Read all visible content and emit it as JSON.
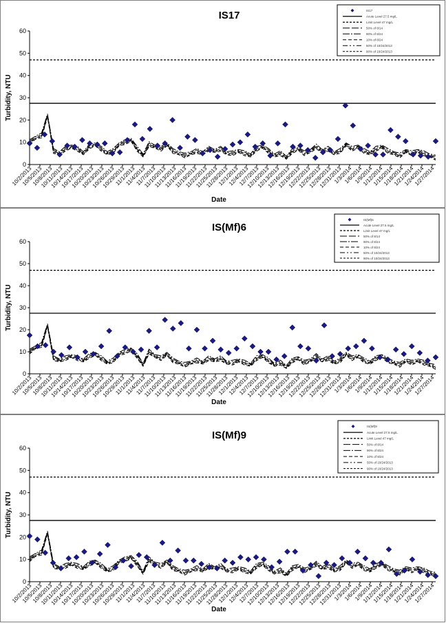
{
  "chart_data": [
    {
      "type": "scatter",
      "title": "IS17",
      "xlabel": "Date",
      "ylabel": "Turbidity, NTU",
      "ylim": [
        0,
        60
      ],
      "yticks": [
        "0",
        "10",
        "20",
        "30",
        "40",
        "50",
        "60"
      ],
      "x_tick_labels": [
        "10/2/2013",
        "10/5/2013",
        "10/8/2013",
        "10/11/2013",
        "10/14/2013",
        "10/17/2013",
        "10/20/2013",
        "10/23/2013",
        "10/26/2013",
        "10/29/2013",
        "11/1/2013",
        "11/4/2013",
        "11/7/2013",
        "11/10/2013",
        "11/13/2013",
        "11/16/2013",
        "11/19/2013",
        "11/22/2013",
        "11/25/2013",
        "11/28/2013",
        "12/1/2013",
        "12/4/2013",
        "12/7/2013",
        "12/10/2013",
        "12/13/2013",
        "12/16/2013",
        "12/19/2013",
        "12/22/2013",
        "12/25/2013",
        "12/28/2013",
        "12/31/2013",
        "1/3/2014",
        "1/6/2014",
        "1/9/2014",
        "1/12/2014",
        "1/15/2014",
        "1/18/2014",
        "1/21/2014",
        "1/24/2014",
        "1/27/2014"
      ],
      "thresholds": [
        47.0,
        27.5
      ],
      "legend": {
        "position": "top-right",
        "entries": [
          "IS17",
          "Acute Level 27.5 mg/L",
          "Limit Level 47 mg/L",
          "50% of 8/14",
          "90% of 8/24",
          "10% of 8/24",
          "50% of 10/24/2013",
          "90% of 10/24/2013"
        ]
      },
      "observed": [
        [
          0,
          9.5
        ],
        [
          1,
          7.5
        ],
        [
          2,
          13.5
        ],
        [
          3,
          10.5
        ],
        [
          4,
          4.5
        ],
        [
          5,
          8.5
        ],
        [
          6,
          8
        ],
        [
          7,
          11
        ],
        [
          8,
          9.5
        ],
        [
          9,
          9
        ],
        [
          10,
          9.5
        ],
        [
          11,
          5
        ],
        [
          12,
          5.5
        ],
        [
          13,
          11
        ],
        [
          14,
          18
        ],
        [
          15,
          11.5
        ],
        [
          16,
          16
        ],
        [
          17,
          8.5
        ],
        [
          18,
          9.5
        ],
        [
          19,
          20
        ],
        [
          20,
          7.5
        ],
        [
          21,
          12.5
        ],
        [
          22,
          11
        ],
        [
          23,
          5
        ],
        [
          24,
          6.5
        ],
        [
          25,
          3.5
        ],
        [
          26,
          7
        ],
        [
          27,
          9
        ],
        [
          28,
          10
        ],
        [
          29,
          13.5
        ],
        [
          30,
          8
        ],
        [
          31,
          9.5
        ],
        [
          32,
          4
        ],
        [
          33,
          9.5
        ],
        [
          34,
          18
        ],
        [
          35,
          8
        ],
        [
          36,
          8.5
        ],
        [
          37,
          6.5
        ],
        [
          38,
          3
        ],
        [
          39,
          5.5
        ],
        [
          40,
          6.5
        ],
        [
          41,
          11.5
        ],
        [
          42,
          26.5
        ],
        [
          43,
          17.5
        ],
        [
          44,
          7
        ],
        [
          45,
          8.5
        ],
        [
          46,
          4.5
        ],
        [
          47,
          4.5
        ],
        [
          48,
          15.5
        ],
        [
          49,
          12.5
        ],
        [
          50,
          10.5
        ],
        [
          51,
          4.5
        ],
        [
          52,
          4
        ],
        [
          53,
          3.5
        ],
        [
          54,
          10.5
        ]
      ],
      "model_base": [
        10,
        12,
        13,
        22,
        6,
        5,
        7,
        8,
        7,
        5,
        8,
        9,
        7,
        5,
        6,
        9,
        10,
        11,
        7,
        4,
        9,
        8,
        7,
        9,
        6,
        5,
        4,
        5,
        6,
        5,
        7,
        6,
        7,
        5,
        5,
        6,
        5,
        4,
        7,
        8,
        6,
        4,
        5,
        3,
        6,
        7,
        5,
        6,
        8,
        6,
        7,
        5,
        6,
        9,
        7,
        8,
        6,
        5,
        7,
        8,
        6,
        5,
        4,
        6,
        5,
        6,
        5,
        4,
        3
      ]
    },
    {
      "type": "scatter",
      "title": "IS(Mf)6",
      "xlabel": "Date",
      "ylabel": "Turbidity, NTU",
      "ylim": [
        0,
        60
      ],
      "yticks": [
        "0",
        "10",
        "20",
        "30",
        "40",
        "50",
        "60"
      ],
      "x_tick_labels": [
        "10/2/2013",
        "10/5/2013",
        "10/8/2013",
        "10/11/2013",
        "10/14/2013",
        "10/17/2013",
        "10/20/2013",
        "10/23/2013",
        "10/26/2013",
        "10/29/2013",
        "11/1/2013",
        "11/4/2013",
        "11/7/2013",
        "11/10/2013",
        "11/13/2013",
        "11/16/2013",
        "11/19/2013",
        "11/22/2013",
        "11/25/2013",
        "11/28/2013",
        "12/1/2013",
        "12/4/2013",
        "12/7/2013",
        "12/10/2013",
        "12/13/2013",
        "12/16/2013",
        "12/19/2013",
        "12/22/2013",
        "12/25/2013",
        "12/28/2013",
        "12/31/2013",
        "1/3/2014",
        "1/6/2014",
        "1/9/2014",
        "1/12/2014",
        "1/15/2014",
        "1/18/2014",
        "1/21/2014",
        "1/24/2014",
        "1/27/2014"
      ],
      "thresholds": [
        47.0,
        27.5
      ],
      "legend": {
        "position": "top-right",
        "entries": [
          "IS(Mf)6",
          "Acute Level 27.5 mg/L",
          "Limit Level 47 mg/L",
          "50% of 8/14",
          "90% of 8/24",
          "10% of 8/24",
          "50% of 10/24/2013",
          "90% of 10/24/2013"
        ]
      },
      "observed": [
        [
          0,
          17.5
        ],
        [
          1,
          12.5
        ],
        [
          2,
          13
        ],
        [
          3,
          10
        ],
        [
          4,
          8.5
        ],
        [
          5,
          12
        ],
        [
          6,
          7.5
        ],
        [
          7,
          10
        ],
        [
          8,
          9
        ],
        [
          9,
          12.5
        ],
        [
          10,
          19.5
        ],
        [
          11,
          8
        ],
        [
          12,
          12
        ],
        [
          13,
          10
        ],
        [
          14,
          11
        ],
        [
          15,
          19.5
        ],
        [
          16,
          12
        ],
        [
          17,
          24.5
        ],
        [
          18,
          20.5
        ],
        [
          19,
          23
        ],
        [
          20,
          11.5
        ],
        [
          21,
          20
        ],
        [
          22,
          11.5
        ],
        [
          23,
          15
        ],
        [
          24,
          11
        ],
        [
          25,
          9.5
        ],
        [
          26,
          11.5
        ],
        [
          27,
          16
        ],
        [
          28,
          12.5
        ],
        [
          29,
          10
        ],
        [
          30,
          10
        ],
        [
          31,
          6.5
        ],
        [
          32,
          8
        ],
        [
          33,
          21
        ],
        [
          34,
          12.5
        ],
        [
          35,
          11.5
        ],
        [
          36,
          6
        ],
        [
          37,
          22
        ],
        [
          38,
          8
        ],
        [
          39,
          9
        ],
        [
          40,
          11.5
        ],
        [
          41,
          12.5
        ],
        [
          42,
          15
        ],
        [
          43,
          11.5
        ],
        [
          44,
          7.5
        ],
        [
          45,
          6.5
        ],
        [
          46,
          11
        ],
        [
          47,
          9
        ],
        [
          48,
          12.5
        ],
        [
          49,
          9.5
        ],
        [
          50,
          6
        ],
        [
          51,
          7.5
        ]
      ],
      "model_base": [
        10,
        12,
        13,
        22,
        7,
        6,
        7,
        8,
        7,
        6,
        8,
        9,
        7,
        5,
        6,
        9,
        10,
        11,
        8,
        4,
        10,
        8,
        7,
        9,
        6,
        5,
        4,
        5,
        6,
        5,
        7,
        6,
        7,
        5,
        5,
        6,
        5,
        4,
        7,
        8,
        6,
        4,
        5,
        3,
        6,
        7,
        5,
        6,
        8,
        6,
        7,
        5,
        6,
        9,
        7,
        8,
        6,
        5,
        7,
        8,
        6,
        5,
        4,
        6,
        5,
        6,
        5,
        4,
        3
      ]
    },
    {
      "type": "scatter",
      "title": "IS(Mf)9",
      "xlabel": "Date",
      "ylabel": "Turbidity, NTU",
      "ylim": [
        0,
        60
      ],
      "yticks": [
        "0",
        "10",
        "20",
        "30",
        "40",
        "50",
        "60"
      ],
      "x_tick_labels": [
        "10/2/2013",
        "10/5/2013",
        "10/8/2013",
        "10/11/2013",
        "10/14/2013",
        "10/17/2013",
        "10/20/2013",
        "10/23/2013",
        "10/26/2013",
        "10/29/2013",
        "11/1/2013",
        "11/4/2013",
        "11/7/2013",
        "11/10/2013",
        "11/13/2013",
        "11/16/2013",
        "11/19/2013",
        "11/22/2013",
        "11/25/2013",
        "11/28/2013",
        "12/1/2013",
        "12/4/2013",
        "12/7/2013",
        "12/10/2013",
        "12/13/2013",
        "12/16/2013",
        "12/19/2013",
        "12/22/2013",
        "12/25/2013",
        "12/28/2013",
        "12/31/2013",
        "1/3/2014",
        "1/6/2014",
        "1/9/2014",
        "1/12/2014",
        "1/15/2014",
        "1/18/2014",
        "1/21/2014",
        "1/24/2014",
        "1/27/2014"
      ],
      "thresholds": [
        47.0,
        27.5
      ],
      "legend": {
        "position": "top-right",
        "entries": [
          "IS(Mf)9",
          "Acute Level 27.5 mg/L",
          "Limit Level 47 mg/L",
          "50% of 8/14",
          "90% of 8/24",
          "10% of 8/24",
          "50% of 10/24/2013",
          "90% of 10/24/2013"
        ]
      },
      "observed": [
        [
          0,
          20.5
        ],
        [
          1,
          19
        ],
        [
          2,
          13
        ],
        [
          3,
          8.5
        ],
        [
          4,
          6
        ],
        [
          5,
          10.5
        ],
        [
          6,
          11
        ],
        [
          7,
          13.5
        ],
        [
          8,
          8.5
        ],
        [
          9,
          12.5
        ],
        [
          10,
          16.5
        ],
        [
          11,
          6.5
        ],
        [
          12,
          9.5
        ],
        [
          13,
          7
        ],
        [
          14,
          12
        ],
        [
          15,
          11
        ],
        [
          16,
          7.5
        ],
        [
          17,
          17.5
        ],
        [
          18,
          9.5
        ],
        [
          19,
          14
        ],
        [
          20,
          9.5
        ],
        [
          21,
          9.5
        ],
        [
          22,
          8
        ],
        [
          23,
          6.5
        ],
        [
          24,
          6
        ],
        [
          25,
          9.5
        ],
        [
          26,
          8.5
        ],
        [
          27,
          11
        ],
        [
          28,
          10
        ],
        [
          29,
          11
        ],
        [
          30,
          10
        ],
        [
          31,
          6.5
        ],
        [
          32,
          9
        ],
        [
          33,
          13.5
        ],
        [
          34,
          13.5
        ],
        [
          35,
          5
        ],
        [
          36,
          7.5
        ],
        [
          37,
          2.5
        ],
        [
          38,
          8.5
        ],
        [
          39,
          7.5
        ],
        [
          40,
          10.5
        ],
        [
          41,
          8.5
        ],
        [
          42,
          13.5
        ],
        [
          43,
          10.5
        ],
        [
          44,
          8.5
        ],
        [
          45,
          8.5
        ],
        [
          46,
          14.5
        ],
        [
          47,
          3.5
        ],
        [
          48,
          5
        ],
        [
          49,
          10
        ],
        [
          50,
          4.5
        ],
        [
          51,
          3
        ],
        [
          52,
          2.5
        ]
      ],
      "model_base": [
        10,
        12,
        13,
        22,
        7,
        6,
        7,
        8,
        7,
        6,
        8,
        9,
        7,
        5,
        6,
        9,
        10,
        11,
        8,
        4,
        10,
        8,
        7,
        9,
        6,
        5,
        4,
        5,
        6,
        5,
        7,
        6,
        7,
        5,
        5,
        6,
        5,
        4,
        7,
        8,
        6,
        4,
        5,
        3,
        6,
        7,
        5,
        6,
        8,
        6,
        7,
        5,
        6,
        9,
        7,
        8,
        6,
        5,
        7,
        8,
        6,
        5,
        4,
        6,
        5,
        6,
        5,
        4,
        3
      ]
    }
  ]
}
